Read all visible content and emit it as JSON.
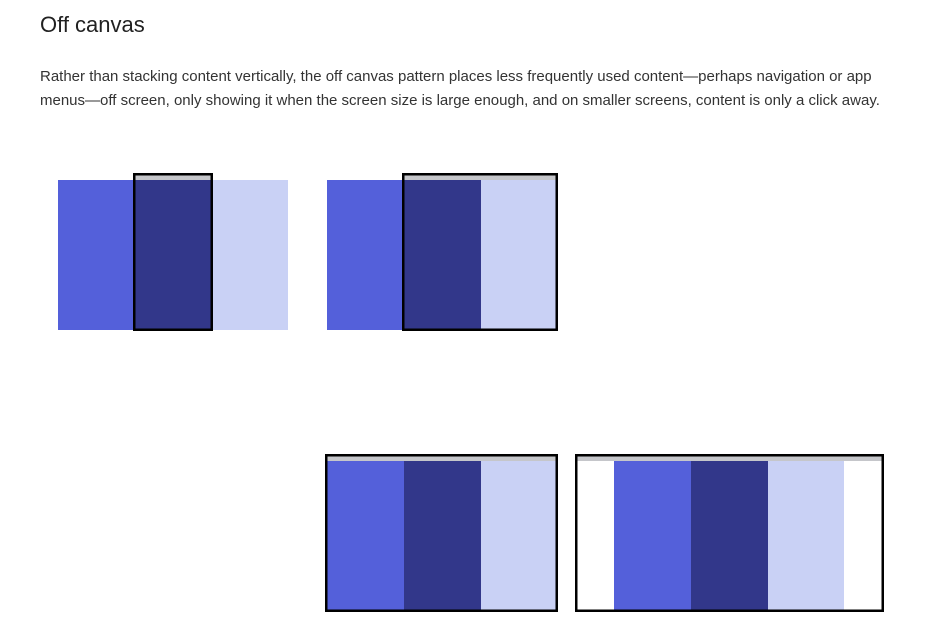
{
  "section": {
    "title": "Off canvas",
    "body": "Rather than stacking content vertically, the off canvas pattern places less frequently used content—perhaps navigation or app menus—off screen, only showing it when the screen size is large enough, and on smaller screens, content is only a click away."
  },
  "colors": {
    "panel_left": "#5460da",
    "panel_center": "#32378a",
    "panel_right": "#c9d1f5",
    "frame_topbar": "#c5c6ca",
    "frame_border": "#000000",
    "background": "#ffffff"
  },
  "diagrams": [
    {
      "name": "small-screen",
      "panels": [
        "panel_left",
        "panel_center",
        "panel_right"
      ],
      "visible_panels": 1
    },
    {
      "name": "medium-screen",
      "panels": [
        "panel_left",
        "panel_center",
        "panel_right"
      ],
      "visible_panels": 2
    },
    {
      "name": "large-screen",
      "panels": [
        "panel_left",
        "panel_center",
        "panel_right"
      ],
      "visible_panels": 3
    },
    {
      "name": "extra-large-screen",
      "panels": [
        "panel_left",
        "panel_center",
        "panel_right"
      ],
      "visible_panels": 3
    }
  ]
}
